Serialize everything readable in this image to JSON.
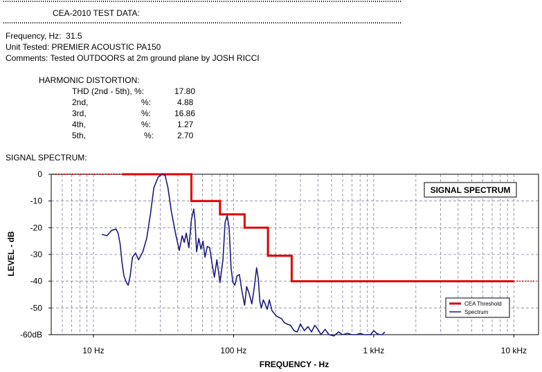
{
  "header": {
    "title": "CEA-2010 TEST DATA:",
    "frequency": "Frequency, Hz:  31.5",
    "unit": "Unit Tested: PREMIER ACOUSTIC PA150",
    "comments": "Comments: Tested OUTDOORS at 2m ground plane by JOSH RICCI"
  },
  "distortion": {
    "heading": "HARMONIC DISTORTION:",
    "rows": [
      {
        "label": "THD (2nd - 5th), %:",
        "value": "17.80"
      },
      {
        "label": "2nd,",
        "pct": "%:",
        "value": "4.88"
      },
      {
        "label": "3rd,",
        "pct": "%:",
        "value": "16.86"
      },
      {
        "label": "4th,",
        "pct": "%:",
        "value": "1.27"
      },
      {
        "label": "5th,",
        "pct": "%:",
        "value": "2.70"
      }
    ]
  },
  "spectrum_heading": "SIGNAL SPECTRUM:",
  "colors": {
    "threshold": "#dd0000",
    "spectrum": "#1a1a80",
    "grid": "#8080a0"
  },
  "chart_data": {
    "type": "line",
    "title": "SIGNAL SPECTRUM",
    "xlabel": "FREQUENCY - Hz",
    "ylabel": "LEVEL - dB",
    "x_scale": "log",
    "xlim": [
      5,
      15000
    ],
    "ylim": [
      -60,
      0
    ],
    "x_ticks": [
      {
        "value": 10,
        "label": "10  Hz"
      },
      {
        "value": 100,
        "label": "100  Hz"
      },
      {
        "value": 1000,
        "label": "1 kHz"
      },
      {
        "value": 10000,
        "label": "10 kHz"
      }
    ],
    "y_ticks": [
      {
        "value": 0,
        "label": "0"
      },
      {
        "value": -10,
        "label": "-10"
      },
      {
        "value": -20,
        "label": "-20"
      },
      {
        "value": -30,
        "label": "-30"
      },
      {
        "value": -40,
        "label": "-40"
      },
      {
        "value": -50,
        "label": "-50"
      },
      {
        "value": -60,
        "label": "-60dB"
      }
    ],
    "grid": true,
    "legend_position": "bottom-right",
    "series": [
      {
        "name": "CEA Threshold",
        "x": [
          16,
          50,
          50,
          80,
          80,
          120,
          120,
          176,
          176,
          260,
          260,
          10000
        ],
        "y": [
          0,
          0,
          -10,
          -10,
          -15,
          -15,
          -20,
          -20,
          -30.5,
          -30.5,
          -40,
          -40
        ],
        "dotted_before": 16,
        "dotted_after": 10000
      },
      {
        "name": "Spectrum",
        "x": [
          11.5,
          12.5,
          13.5,
          14.5,
          15.0,
          15.5,
          16.0,
          16.5,
          17.2,
          17.7,
          18.3,
          19.0,
          20.0,
          21.0,
          22.5,
          24.0,
          25.5,
          27.0,
          29.0,
          31.0,
          32.5,
          34.0,
          36.0,
          38.5,
          41.0,
          43.0,
          44.5,
          46.0,
          48.0,
          50.0,
          52.0,
          53.0,
          54.5,
          56.5,
          58.5,
          60.5,
          62.5,
          65.0,
          67.5,
          70.0,
          73.0,
          76.0,
          80.0,
          84.0,
          87.0,
          90.0,
          93.0,
          96.0,
          99.0,
          102.0,
          106.0,
          110.0,
          115.0,
          120.0,
          124.0,
          129.0,
          135.0,
          140.0,
          146.0,
          150.0,
          154.0,
          158.0,
          163.0,
          168.0,
          174.0,
          180.0,
          188.0,
          195.0,
          202.0,
          210.0,
          220.0,
          230.0,
          240.0,
          255.0,
          270.0,
          285.0,
          300.0,
          320.0,
          340.0,
          360.0,
          380.0,
          400.0,
          420.0,
          450.0,
          480.0,
          520.0,
          560.0,
          600.0,
          650.0,
          700.0,
          750.0,
          800.0,
          850.0,
          900.0,
          950.0,
          1000.0,
          1050.0,
          1100.0,
          1150.0,
          1200.0
        ],
        "y": [
          -22.5,
          -23.0,
          -21.0,
          -20.5,
          -22.0,
          -26.0,
          -33.0,
          -38.0,
          -40.5,
          -41.5,
          -38.0,
          -31.0,
          -29.5,
          -32.0,
          -29.0,
          -24.0,
          -15.0,
          -5.0,
          -1.0,
          0.0,
          -0.5,
          -5.0,
          -14.0,
          -22.0,
          -28.5,
          -23.0,
          -25.5,
          -22.0,
          -27.5,
          -17.0,
          -13.0,
          -17.0,
          -29.0,
          -24.0,
          -28.0,
          -25.0,
          -31.0,
          -27.0,
          -27.5,
          -33.0,
          -38.5,
          -32.0,
          -40.5,
          -32.0,
          -18.0,
          -15.5,
          -20.0,
          -35.0,
          -40.5,
          -41.5,
          -38.0,
          -37.5,
          -44.0,
          -49.0,
          -42.0,
          -44.5,
          -48.5,
          -43.0,
          -35.0,
          -39.0,
          -47.5,
          -50.0,
          -47.0,
          -48.5,
          -50.5,
          -47.0,
          -51.0,
          -52.0,
          -53.0,
          -53.5,
          -54.0,
          -55.5,
          -56.0,
          -56.5,
          -58.5,
          -59.0,
          -56.0,
          -58.5,
          -57.0,
          -59.0,
          -56.5,
          -58.0,
          -60.0,
          -58.0,
          -60.0,
          -60.5,
          -59.0,
          -60.0,
          -59.5,
          -60.0,
          -60.0,
          -59.5,
          -60.0,
          -60.0,
          -60.0,
          -58.5,
          -59.5,
          -60.0,
          -60.0,
          -59.0
        ]
      }
    ]
  }
}
